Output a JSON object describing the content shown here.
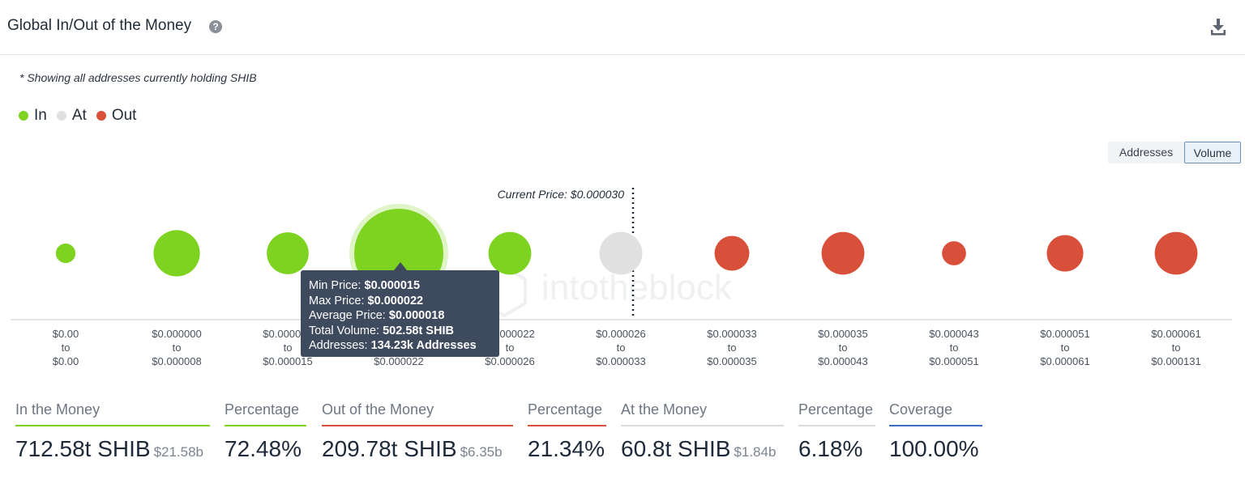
{
  "header": {
    "title": "Global In/Out of the Money",
    "help_icon": "help-icon",
    "download_icon": "download-icon"
  },
  "note": "* Showing all addresses currently holding SHIB",
  "legend": [
    {
      "label": "In",
      "color": "#7ed321"
    },
    {
      "label": "At",
      "color": "#e0e0e0"
    },
    {
      "label": "Out",
      "color": "#d9503a"
    }
  ],
  "toggle": {
    "addresses": "Addresses",
    "volume": "Volume",
    "selected": "Volume"
  },
  "watermark": "intotheblock",
  "chart_data": {
    "type": "bubble",
    "current_price_label": "Current Price: $0.000030",
    "current_price": 3e-05,
    "buckets": [
      {
        "from": "$0.00",
        "to": "$0.00",
        "status": "In",
        "relative_size": 0.22
      },
      {
        "from": "$0.000000",
        "to": "$0.000008",
        "status": "In",
        "relative_size": 0.52
      },
      {
        "from": "$0.000008",
        "to": "$0.000015",
        "status": "In",
        "relative_size": 0.47
      },
      {
        "from": "$0.000015",
        "to": "$0.000022",
        "status": "In",
        "relative_size": 1.0,
        "highlighted": true
      },
      {
        "from": "$0.000022",
        "to": "$0.000026",
        "status": "In",
        "relative_size": 0.48
      },
      {
        "from": "$0.000026",
        "to": "$0.000033",
        "status": "At",
        "relative_size": 0.48
      },
      {
        "from": "$0.000033",
        "to": "$0.000035",
        "status": "Out",
        "relative_size": 0.39
      },
      {
        "from": "$0.000035",
        "to": "$0.000043",
        "status": "Out",
        "relative_size": 0.48
      },
      {
        "from": "$0.000043",
        "to": "$0.000051",
        "status": "Out",
        "relative_size": 0.27
      },
      {
        "from": "$0.000051",
        "to": "$0.000061",
        "status": "Out",
        "relative_size": 0.41
      },
      {
        "from": "$0.000061",
        "to": "$0.000131",
        "status": "Out",
        "relative_size": 0.48
      }
    ],
    "tooltip": {
      "min_price_label": "Min Price:",
      "min_price": "$0.000015",
      "max_price_label": "Max Price:",
      "max_price": "$0.000022",
      "avg_price_label": "Average Price:",
      "avg_price": "$0.000018",
      "volume_label": "Total Volume:",
      "volume": "502.58t SHIB",
      "addresses_label": "Addresses:",
      "addresses": "134.23k Addresses"
    }
  },
  "stats": {
    "in": {
      "label": "In the Money",
      "value": "712.58t SHIB",
      "sub": "$21.58b",
      "color": "#7ed321"
    },
    "in_pct": {
      "label": "Percentage",
      "value": "72.48%",
      "color": "#7ed321"
    },
    "out": {
      "label": "Out of the Money",
      "value": "209.78t SHIB",
      "sub": "$6.35b",
      "color": "#d9503a"
    },
    "out_pct": {
      "label": "Percentage",
      "value": "21.34%",
      "color": "#d9503a"
    },
    "at": {
      "label": "At the Money",
      "value": "60.8t SHIB",
      "sub": "$1.84b",
      "color": "#dcdcdc"
    },
    "at_pct": {
      "label": "Percentage",
      "value": "6.18%",
      "color": "#dcdcdc"
    },
    "coverage": {
      "label": "Coverage",
      "value": "100.00%",
      "color": "#3a6fc4"
    }
  }
}
